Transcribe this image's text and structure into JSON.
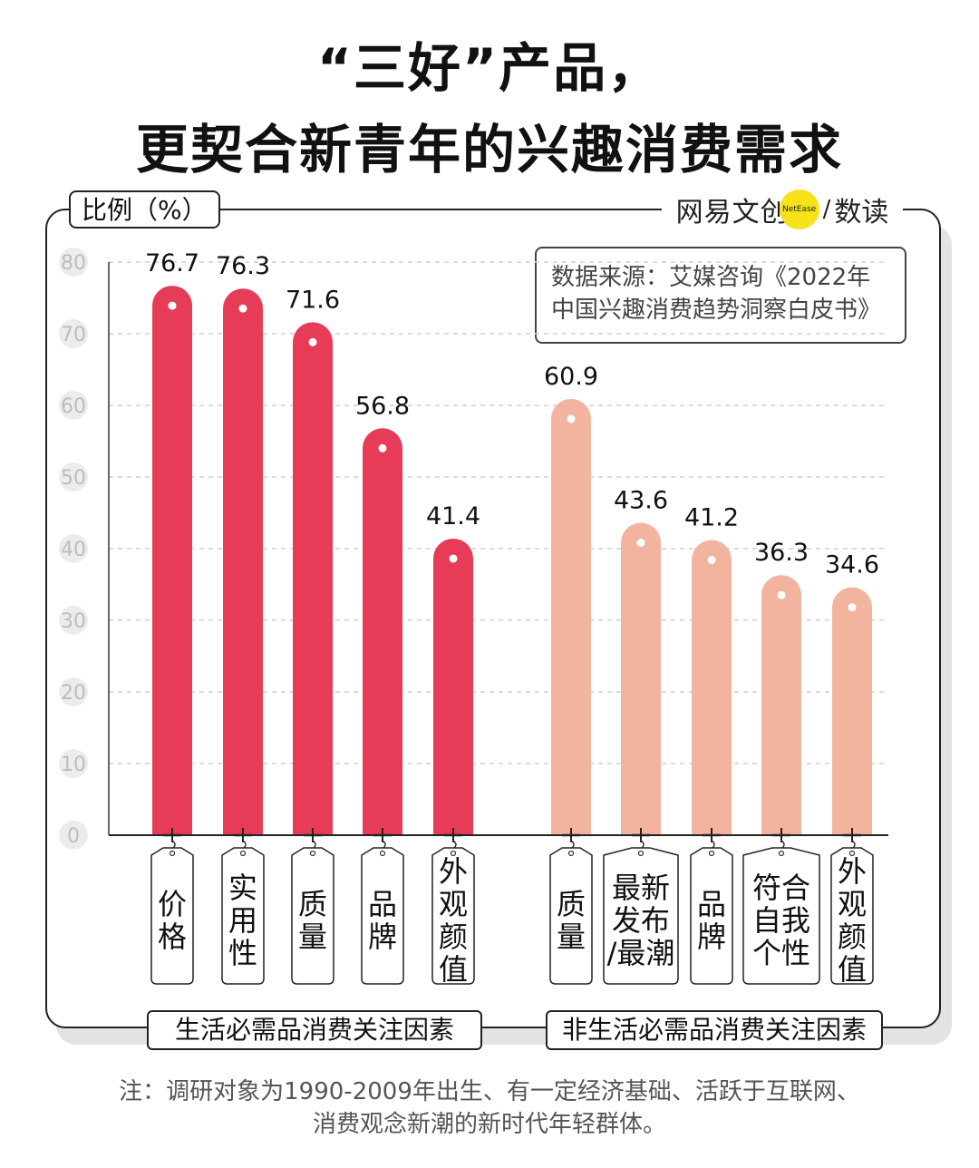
{
  "title_line1": "“三好”产品，",
  "title_line2": "更契合新青年的兴趣消费需求",
  "unit_label": "比例（%）",
  "brand": {
    "name": "网易文创",
    "badge": "NetEase",
    "slash": "/",
    "sub": "数读"
  },
  "source_line1": "数据来源：艾媒咨询《2022年",
  "source_line2": "中国兴趣消费趋势洞察白皮书》",
  "note_line1": "注：调研对象为1990-2009年出生、有一定经济基础、活跃于互联网、",
  "note_line2": "消费观念新潮的新时代年轻群体。",
  "chart_data": {
    "type": "bar",
    "ylim": [
      0,
      80
    ],
    "yticks": [
      0,
      10,
      20,
      30,
      40,
      50,
      60,
      70,
      80
    ],
    "grid": true,
    "groups": [
      {
        "name": "生活必需品消费关注因素",
        "color": "#e63c58",
        "categories": [
          "价格",
          "实用性",
          "质量",
          "品牌",
          "外观颜值"
        ],
        "values": [
          76.7,
          76.3,
          71.6,
          56.8,
          41.4
        ]
      },
      {
        "name": "非生活必需品消费关注因素",
        "color": "#f2b49e",
        "categories": [
          "质量",
          "最新发布/最潮",
          "品牌",
          "符合自我个性",
          "外观颜值"
        ],
        "values": [
          60.9,
          43.6,
          41.2,
          36.3,
          34.6
        ]
      }
    ]
  }
}
